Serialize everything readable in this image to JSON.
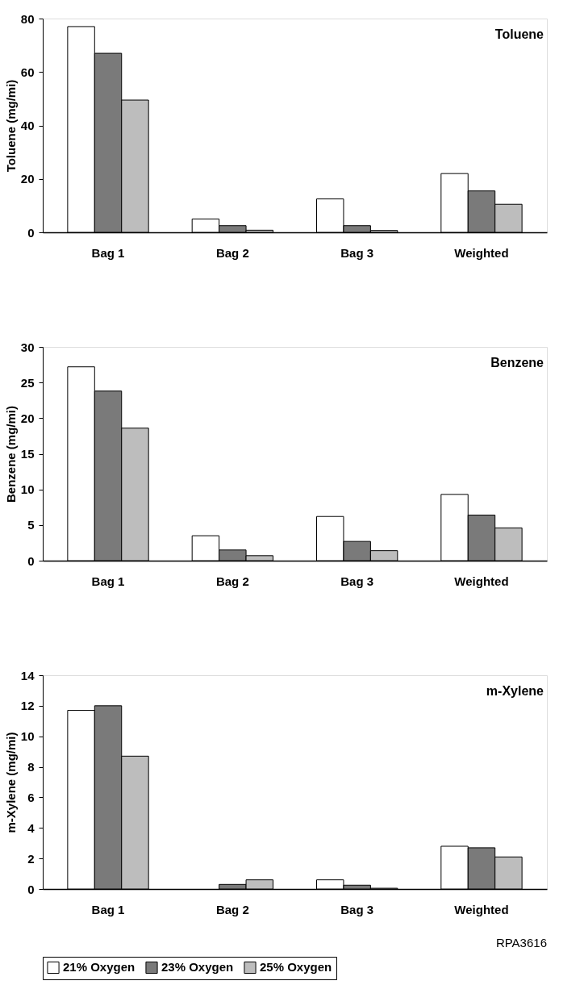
{
  "chart_data": [
    {
      "type": "bar",
      "title": "Toluene",
      "ylabel": "Toluene (mg/mi)",
      "categories": [
        "Bag 1",
        "Bag 2",
        "Bag 3",
        "Weighted"
      ],
      "ylim": [
        0,
        80
      ],
      "yticks": [
        0,
        20,
        40,
        60,
        80
      ],
      "legend": "bottom",
      "series": [
        {
          "name": "21% Oxygen",
          "color": "#ffffff",
          "values": [
            77,
            5,
            12.5,
            22
          ]
        },
        {
          "name": "23% Oxygen",
          "color": "#7a7a7a",
          "values": [
            67,
            2.5,
            2.5,
            15.5
          ]
        },
        {
          "name": "25% Oxygen",
          "color": "#bdbdbd",
          "values": [
            49.5,
            0.8,
            0.7,
            10.5
          ]
        }
      ]
    },
    {
      "type": "bar",
      "title": "Benzene",
      "ylabel": "Benzene (mg/mi)",
      "categories": [
        "Bag 1",
        "Bag 2",
        "Bag 3",
        "Weighted"
      ],
      "ylim": [
        0,
        30
      ],
      "yticks": [
        0,
        5,
        10,
        15,
        20,
        25,
        30
      ],
      "legend": "bottom",
      "series": [
        {
          "name": "21% Oxygen",
          "color": "#ffffff",
          "values": [
            27.2,
            3.5,
            6.2,
            9.3
          ]
        },
        {
          "name": "23% Oxygen",
          "color": "#7a7a7a",
          "values": [
            23.8,
            1.5,
            2.7,
            6.4
          ]
        },
        {
          "name": "25% Oxygen",
          "color": "#bdbdbd",
          "values": [
            18.6,
            0.7,
            1.4,
            4.6
          ]
        }
      ]
    },
    {
      "type": "bar",
      "title": "m-Xylene",
      "ylabel": "m-Xylene (mg/mi)",
      "categories": [
        "Bag 1",
        "Bag 2",
        "Bag 3",
        "Weighted"
      ],
      "ylim": [
        0,
        14
      ],
      "yticks": [
        0,
        2,
        4,
        6,
        8,
        10,
        12,
        14
      ],
      "legend": "bottom",
      "annotations": [
        "RPA3616"
      ],
      "series": [
        {
          "name": "21% Oxygen",
          "color": "#ffffff",
          "values": [
            11.7,
            null,
            0.6,
            2.8
          ]
        },
        {
          "name": "23% Oxygen",
          "color": "#7a7a7a",
          "values": [
            12.0,
            0.3,
            0.25,
            2.7
          ]
        },
        {
          "name": "25% Oxygen",
          "color": "#bdbdbd",
          "values": [
            8.7,
            0.6,
            0.05,
            2.1
          ]
        }
      ]
    }
  ]
}
